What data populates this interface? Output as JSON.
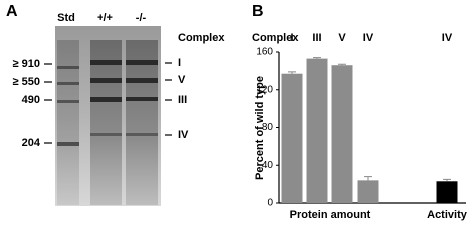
{
  "panel_a": {
    "label": "A",
    "lanes": [
      "Std",
      "+/+",
      "-/-"
    ],
    "complex_header": "Complex",
    "markers": [
      "≥ 910",
      "≥ 550",
      "490",
      "204"
    ],
    "complexes": [
      "I",
      "V",
      "III",
      "IV"
    ]
  },
  "chart_data": {
    "type": "bar",
    "label": "B",
    "complex_header": "Complex",
    "y_label": "Percent of wild type",
    "categories": [
      "I",
      "III",
      "V",
      "IV",
      "IV"
    ],
    "values": [
      137,
      153,
      146,
      24,
      23
    ],
    "errors": [
      2,
      1,
      1,
      4,
      2
    ],
    "colors": [
      "#8c8c8c",
      "#8c8c8c",
      "#8c8c8c",
      "#8c8c8c",
      "#000000"
    ],
    "groups": [
      "Protein amount",
      "Activity"
    ],
    "ylim": [
      0,
      160
    ],
    "yticks": [
      0,
      40,
      80,
      120,
      160
    ],
    "grid": false
  }
}
